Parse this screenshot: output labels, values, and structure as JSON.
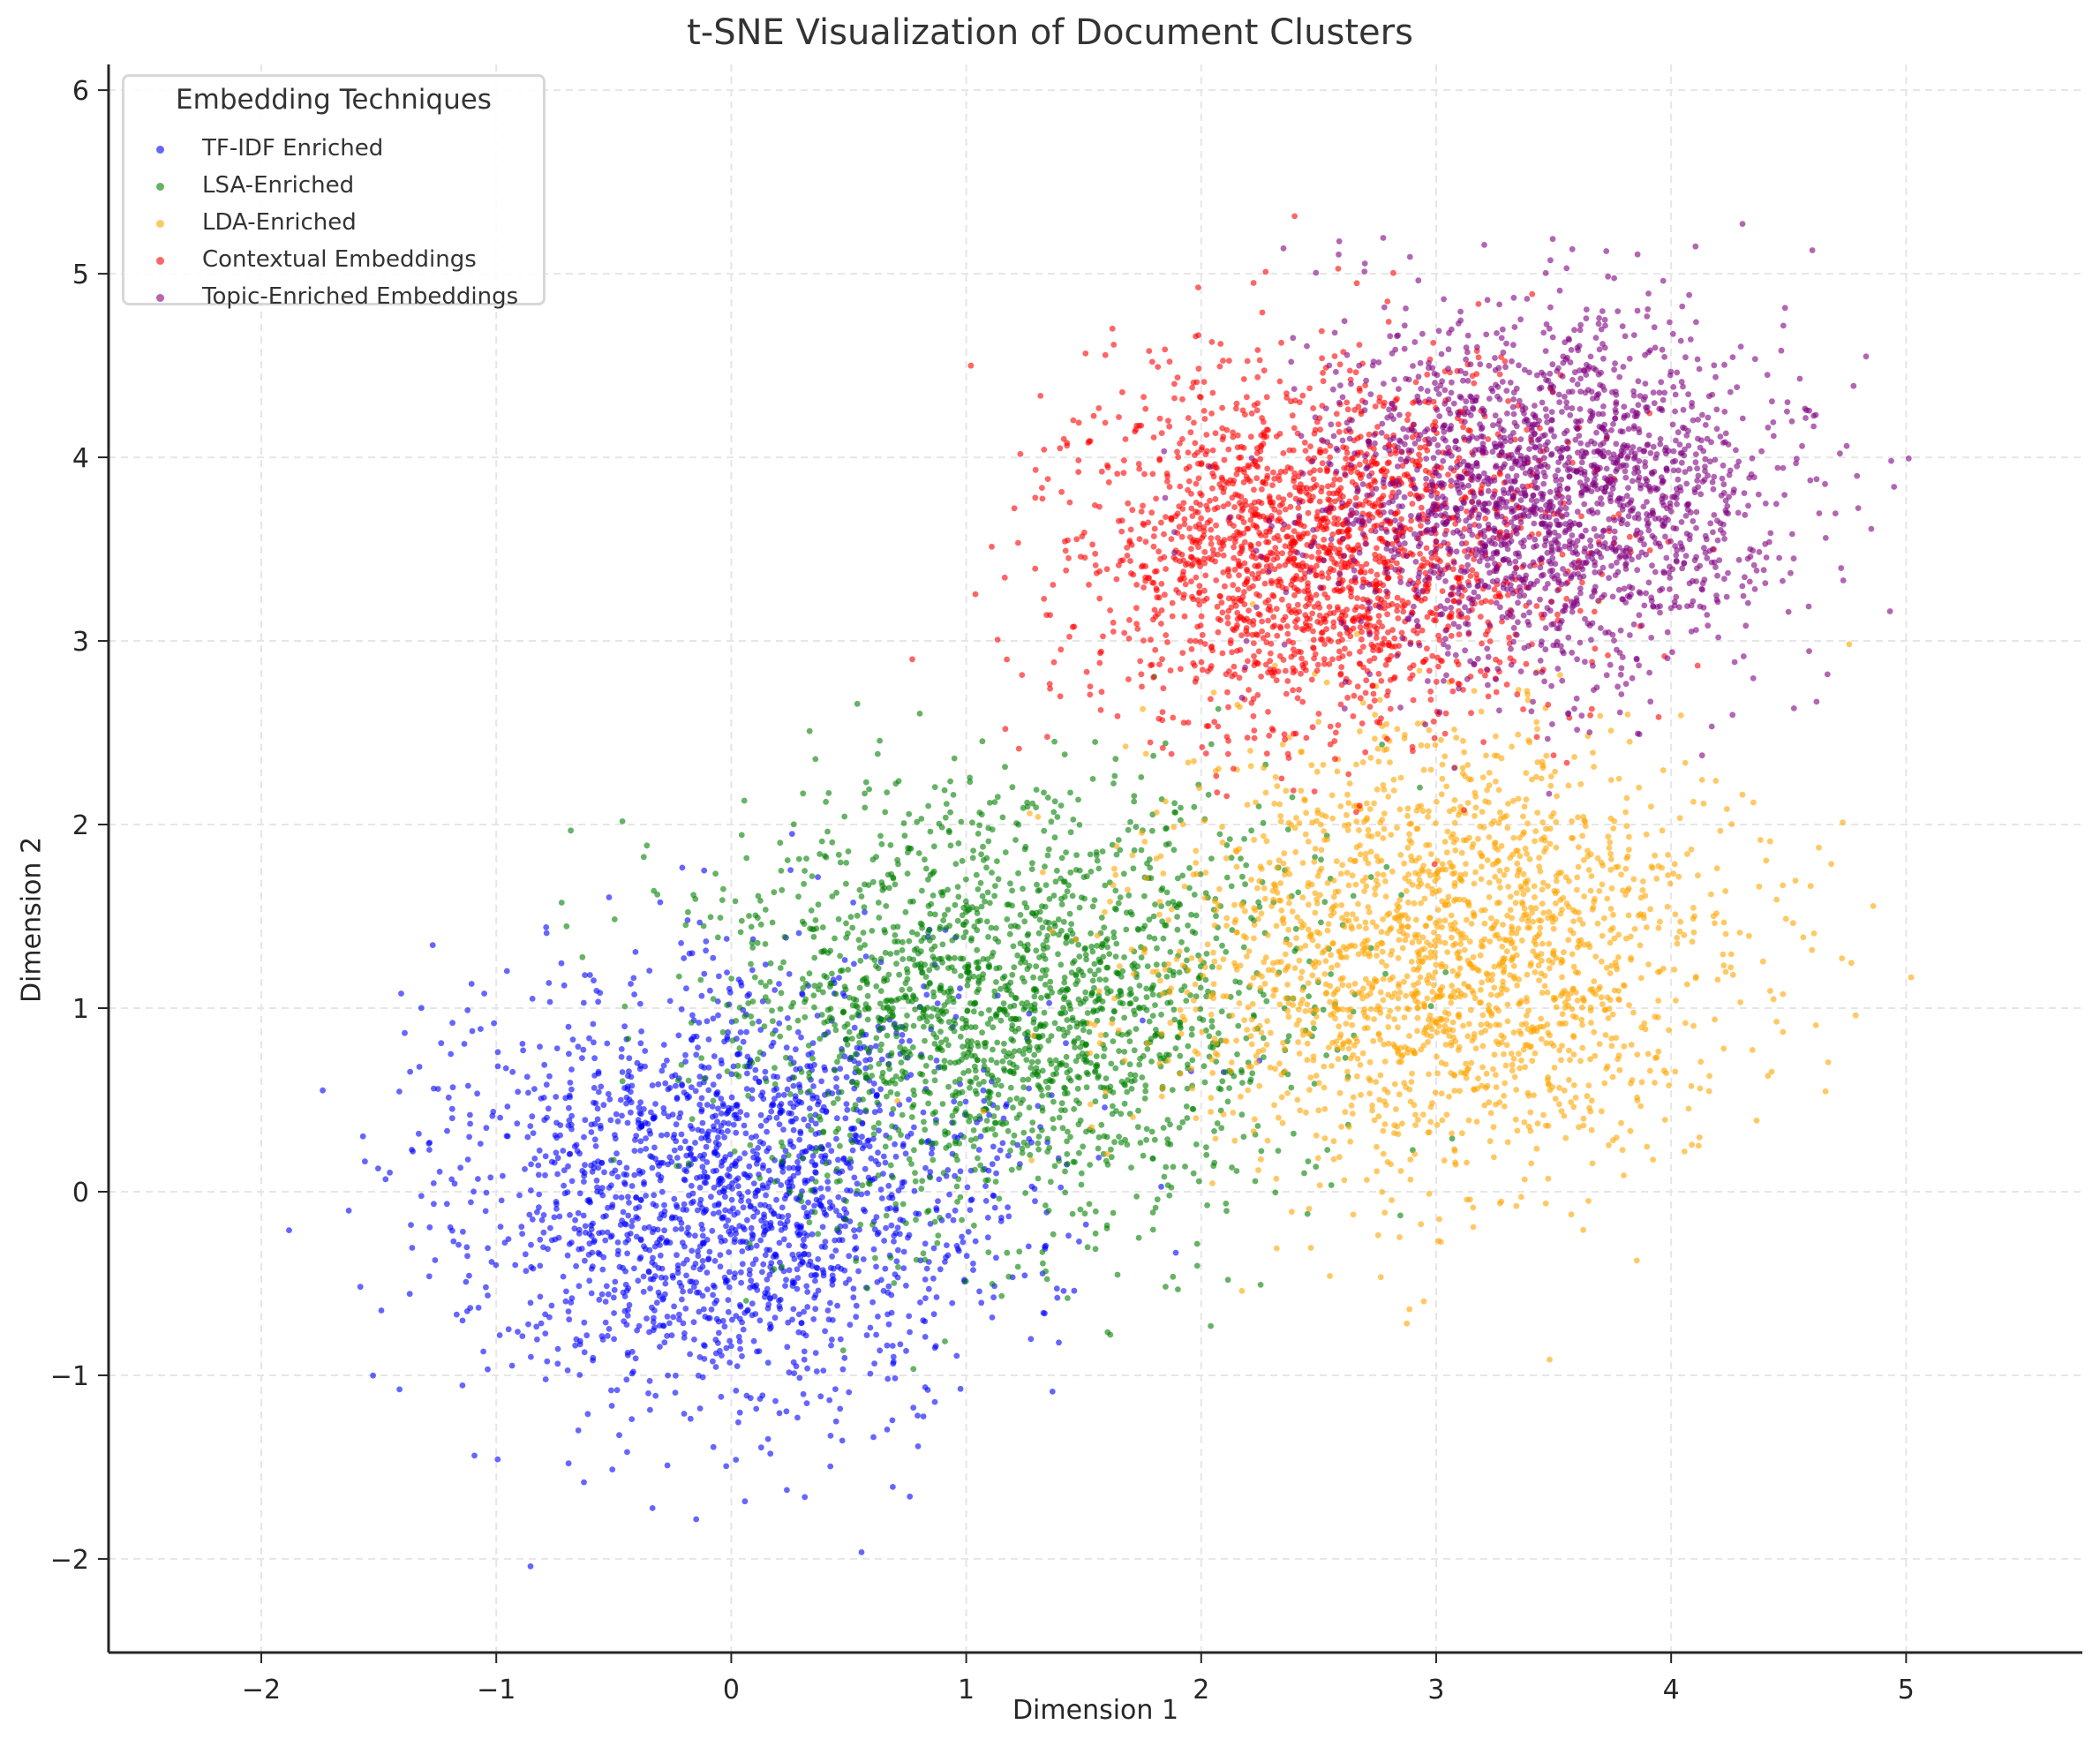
{
  "chart_data": {
    "type": "scatter",
    "title": "t-SNE Visualization of Document Clusters",
    "xlabel": "Dimension 1",
    "ylabel": "Dimension 2",
    "xlim": [
      -2.65,
      5.75
    ],
    "ylim": [
      -2.51,
      6.14
    ],
    "xticks": [
      -2,
      -1,
      0,
      1,
      2,
      3,
      4,
      5
    ],
    "yticks": [
      -2,
      -1,
      0,
      1,
      2,
      3,
      4,
      5,
      6
    ],
    "grid": true,
    "legend_position": "upper left",
    "legend_title": "Embedding Techniques",
    "series": [
      {
        "name": "TF-IDF Enriched",
        "color": "#0000ff",
        "center": [
          0.0,
          0.0
        ],
        "std": [
          0.6,
          0.6
        ],
        "n": 2000
      },
      {
        "name": "LSA-Enriched",
        "color": "#008000",
        "center": [
          1.2,
          1.0
        ],
        "std": [
          0.6,
          0.6
        ],
        "n": 2000
      },
      {
        "name": "LDA-Enriched",
        "color": "#ffa500",
        "center": [
          3.0,
          1.3
        ],
        "std": [
          0.6,
          0.6
        ],
        "n": 2000
      },
      {
        "name": "Contextual Embeddings",
        "color": "#ff0000",
        "center": [
          2.5,
          3.5
        ],
        "std": [
          0.5,
          0.5
        ],
        "n": 2000
      },
      {
        "name": "Topic-Enriched Embeddings",
        "color": "#800080",
        "center": [
          3.5,
          3.8
        ],
        "std": [
          0.5,
          0.5
        ],
        "n": 2000
      }
    ]
  },
  "axes": {
    "x_tick_labels": [
      "−2",
      "−1",
      "0",
      "1",
      "2",
      "3",
      "4",
      "5"
    ],
    "y_tick_labels": [
      "−2",
      "−1",
      "0",
      "1",
      "2",
      "3",
      "4",
      "5",
      "6"
    ]
  },
  "legend": {
    "title": "Embedding Techniques",
    "items": [
      {
        "label": "TF-IDF Enriched",
        "color": "#0000ff"
      },
      {
        "label": "LSA-Enriched",
        "color": "#008000"
      },
      {
        "label": "LDA-Enriched",
        "color": "#ffa500"
      },
      {
        "label": "Contextual Embeddings",
        "color": "#ff0000"
      },
      {
        "label": "Topic-Enriched Embeddings",
        "color": "#800080"
      }
    ]
  }
}
